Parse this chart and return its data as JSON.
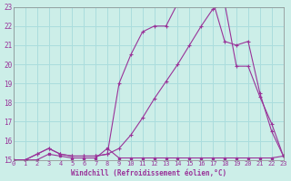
{
  "xlabel": "Windchill (Refroidissement éolien,°C)",
  "bg_color": "#cceee8",
  "grid_color": "#aadddd",
  "line_color": "#993399",
  "xmin": 0,
  "xmax": 23,
  "ymin": 15,
  "ymax": 23,
  "line1_x": [
    0,
    1,
    2,
    3,
    4,
    5,
    6,
    7,
    8,
    9,
    10,
    11,
    12,
    13,
    14,
    15,
    16,
    17,
    18,
    19,
    20,
    21,
    22,
    23
  ],
  "line1_y": [
    15.0,
    15.0,
    15.0,
    15.3,
    15.2,
    15.1,
    15.1,
    15.1,
    15.6,
    15.1,
    15.1,
    15.1,
    15.1,
    15.1,
    15.1,
    15.1,
    15.1,
    15.1,
    15.1,
    15.1,
    15.1,
    15.1,
    15.1,
    15.2
  ],
  "line2_x": [
    0,
    1,
    2,
    3,
    4,
    5,
    6,
    7,
    8,
    9,
    10,
    11,
    12,
    13,
    14,
    15,
    16,
    17,
    18,
    19,
    20,
    21,
    22,
    23
  ],
  "line2_y": [
    15.0,
    15.0,
    15.3,
    15.6,
    15.3,
    15.2,
    15.2,
    15.2,
    15.3,
    15.6,
    16.3,
    17.2,
    18.2,
    19.1,
    20.0,
    21.0,
    22.0,
    22.9,
    23.2,
    19.9,
    19.9,
    18.3,
    16.9,
    15.2
  ],
  "line3_x": [
    0,
    1,
    2,
    3,
    4,
    5,
    6,
    7,
    8,
    9,
    10,
    11,
    12,
    13,
    14,
    15,
    16,
    17,
    18,
    19,
    20,
    21,
    22,
    23
  ],
  "line3_y": [
    15.0,
    15.0,
    15.3,
    15.6,
    15.3,
    15.2,
    15.2,
    15.2,
    15.3,
    19.0,
    20.5,
    21.7,
    22.0,
    22.0,
    23.2,
    23.4,
    23.4,
    23.3,
    21.2,
    21.0,
    21.2,
    18.5,
    16.5,
    15.2
  ]
}
